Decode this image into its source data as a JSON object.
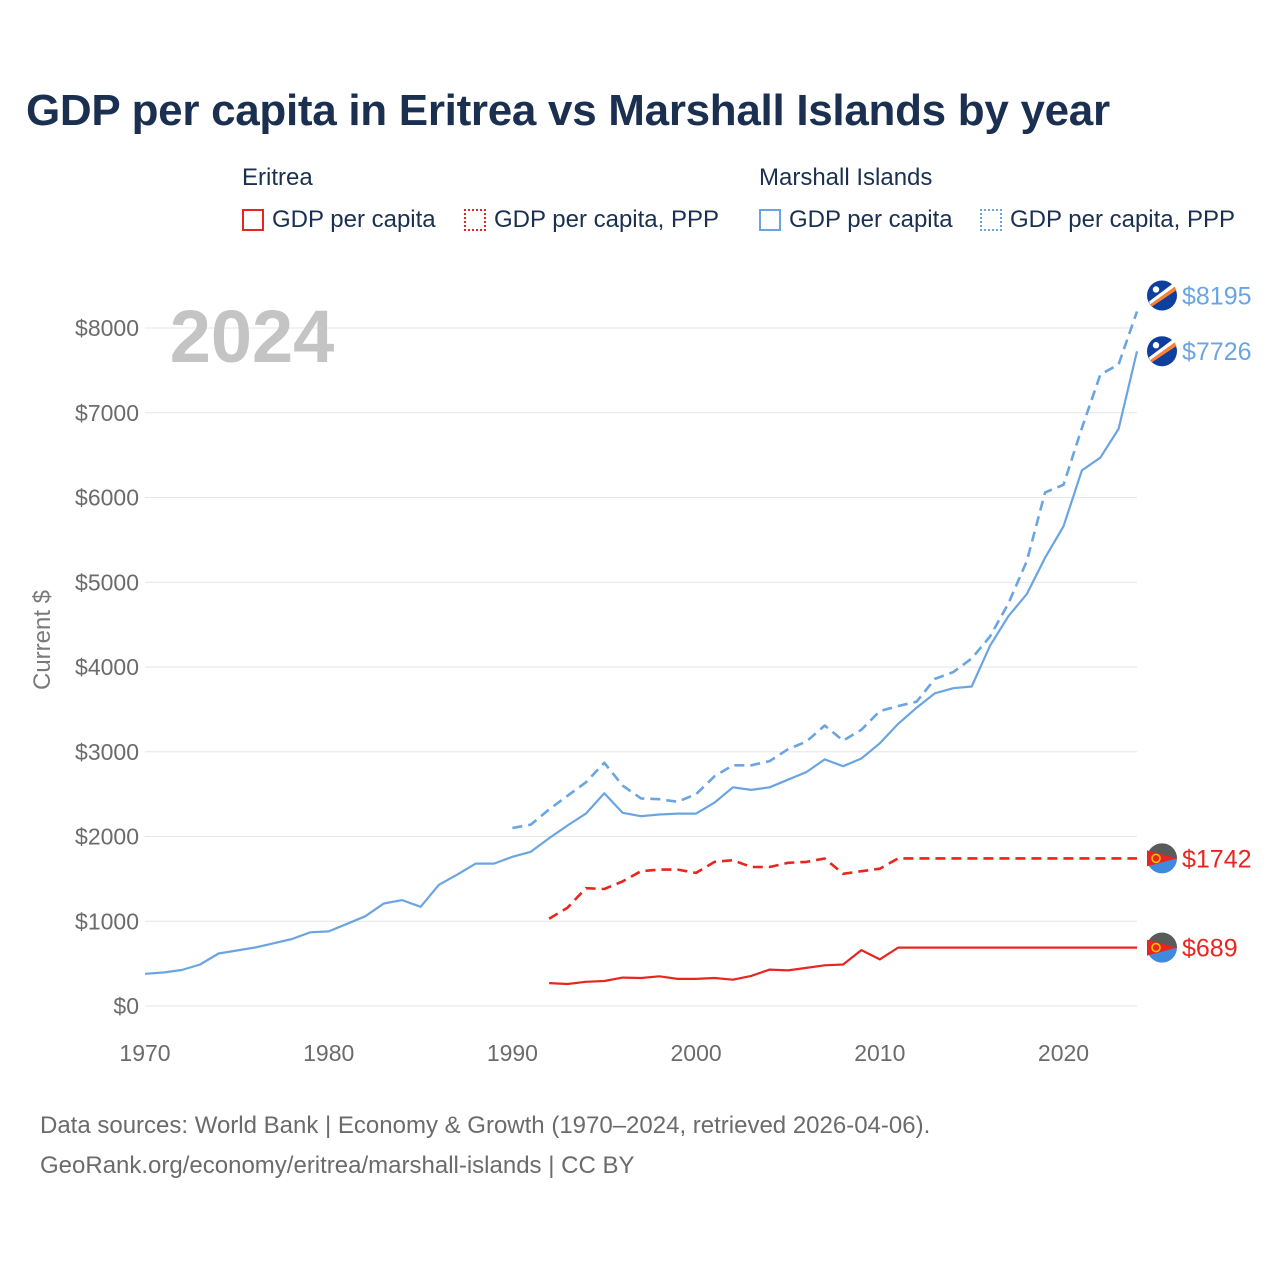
{
  "title": "GDP per capita in Eritrea vs Marshall Islands by year",
  "legend": {
    "groups": [
      {
        "country": "Eritrea",
        "color": "#e8261f",
        "items": [
          {
            "label": "GDP per capita",
            "style": "solid"
          },
          {
            "label": "GDP per capita, PPP",
            "style": "dotted"
          }
        ]
      },
      {
        "country": "Marshall Islands",
        "color": "#6aa5e2",
        "items": [
          {
            "label": "GDP per capita",
            "style": "solid"
          },
          {
            "label": "GDP per capita, PPP",
            "style": "dotted"
          }
        ]
      }
    ]
  },
  "year_watermark": "2024",
  "sources": {
    "line1": "Data sources: World Bank | Economy & Growth (1970–2024, retrieved 2026-04-06).",
    "line2": "GeoRank.org/economy/eritrea/marshall-islands | CC BY"
  },
  "chart_data": {
    "type": "line",
    "title": "GDP per capita in Eritrea vs Marshall Islands by year",
    "xlabel": "",
    "ylabel": "Current $",
    "xlim": [
      1970,
      2024
    ],
    "ylim": [
      0,
      8500
    ],
    "xticks": [
      1970,
      1980,
      1990,
      2000,
      2010,
      2020
    ],
    "yticks": [
      0,
      1000,
      2000,
      3000,
      4000,
      5000,
      6000,
      7000,
      8000
    ],
    "ytick_labels": [
      "$0",
      "$1000",
      "$2000",
      "$3000",
      "$4000",
      "$5000",
      "$6000",
      "$7000",
      "$8000"
    ],
    "grid": true,
    "series": [
      {
        "name": "Marshall Islands GDP per capita, PPP",
        "color": "#6aa5e2",
        "dash": "dashed",
        "end_label": "$8195",
        "x": [
          1990,
          1991,
          1992,
          1993,
          1994,
          1995,
          1996,
          1997,
          1998,
          1999,
          2000,
          2001,
          2002,
          2003,
          2004,
          2005,
          2006,
          2007,
          2008,
          2009,
          2010,
          2011,
          2012,
          2013,
          2014,
          2015,
          2016,
          2017,
          2018,
          2019,
          2020,
          2021,
          2022,
          2023,
          2024
        ],
        "y": [
          2100,
          2140,
          2320,
          2480,
          2640,
          2870,
          2600,
          2450,
          2440,
          2410,
          2500,
          2710,
          2840,
          2840,
          2890,
          3030,
          3120,
          3310,
          3130,
          3260,
          3480,
          3540,
          3590,
          3860,
          3940,
          4100,
          4360,
          4750,
          5250,
          6060,
          6150,
          6820,
          7450,
          7570,
          8195
        ]
      },
      {
        "name": "Marshall Islands GDP per capita",
        "color": "#6aa5e2",
        "dash": "solid",
        "end_label": "$7726",
        "x": [
          1970,
          1971,
          1972,
          1973,
          1974,
          1975,
          1976,
          1977,
          1978,
          1979,
          1980,
          1981,
          1982,
          1983,
          1984,
          1985,
          1986,
          1987,
          1988,
          1989,
          1990,
          1991,
          1992,
          1993,
          1994,
          1995,
          1996,
          1997,
          1998,
          1999,
          2000,
          2001,
          2002,
          2003,
          2004,
          2005,
          2006,
          2007,
          2008,
          2009,
          2010,
          2011,
          2012,
          2013,
          2014,
          2015,
          2016,
          2017,
          2018,
          2019,
          2020,
          2021,
          2022,
          2023,
          2024
        ],
        "y": [
          380,
          395,
          425,
          490,
          620,
          655,
          690,
          740,
          790,
          870,
          880,
          970,
          1060,
          1210,
          1250,
          1170,
          1430,
          1550,
          1680,
          1680,
          1760,
          1820,
          1980,
          2130,
          2270,
          2510,
          2280,
          2240,
          2260,
          2270,
          2270,
          2400,
          2580,
          2550,
          2580,
          2670,
          2760,
          2910,
          2830,
          2920,
          3100,
          3330,
          3520,
          3690,
          3750,
          3770,
          4250,
          4600,
          4860,
          5290,
          5660,
          6320,
          6470,
          6810,
          7726
        ]
      },
      {
        "name": "Eritrea GDP per capita, PPP",
        "color": "#e8261f",
        "dash": "dashed",
        "end_label": "$1742",
        "x": [
          1992,
          1993,
          1994,
          1995,
          1996,
          1997,
          1998,
          1999,
          2000,
          2001,
          2002,
          2003,
          2004,
          2005,
          2006,
          2007,
          2008,
          2009,
          2010,
          2011,
          2012,
          2013,
          2014,
          2015,
          2016,
          2017,
          2018,
          2019,
          2020,
          2021,
          2022,
          2023,
          2024
        ],
        "y": [
          1030,
          1160,
          1390,
          1380,
          1470,
          1590,
          1610,
          1610,
          1570,
          1700,
          1720,
          1640,
          1640,
          1690,
          1700,
          1740,
          1560,
          1590,
          1620,
          1742,
          1742,
          1742,
          1742,
          1742,
          1742,
          1742,
          1742,
          1742,
          1742,
          1742,
          1742,
          1742,
          1742
        ]
      },
      {
        "name": "Eritrea GDP per capita",
        "color": "#e8261f",
        "dash": "solid",
        "end_label": "$689",
        "x": [
          1992,
          1993,
          1994,
          1995,
          1996,
          1997,
          1998,
          1999,
          2000,
          2001,
          2002,
          2003,
          2004,
          2005,
          2006,
          2007,
          2008,
          2009,
          2010,
          2011,
          2012,
          2013,
          2014,
          2015,
          2016,
          2017,
          2018,
          2019,
          2020,
          2021,
          2022,
          2023,
          2024
        ],
        "y": [
          270,
          260,
          285,
          295,
          335,
          330,
          350,
          320,
          320,
          330,
          310,
          355,
          430,
          420,
          450,
          480,
          490,
          660,
          550,
          689,
          689,
          689,
          689,
          689,
          689,
          689,
          689,
          689,
          689,
          689,
          689,
          689,
          689
        ]
      }
    ]
  }
}
